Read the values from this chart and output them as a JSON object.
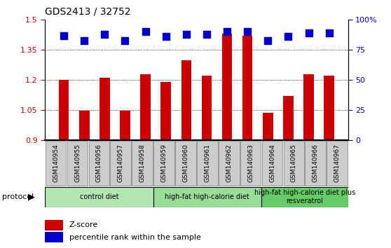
{
  "title": "GDS2413 / 32752",
  "samples": [
    "GSM140954",
    "GSM140955",
    "GSM140956",
    "GSM140957",
    "GSM140958",
    "GSM140959",
    "GSM140960",
    "GSM140961",
    "GSM140962",
    "GSM140963",
    "GSM140964",
    "GSM140965",
    "GSM140966",
    "GSM140967"
  ],
  "z_scores": [
    1.2,
    1.046,
    1.21,
    1.046,
    1.23,
    1.19,
    1.3,
    1.22,
    1.43,
    1.42,
    1.035,
    1.12,
    1.23,
    1.22
  ],
  "percentile_ranks": [
    87,
    83,
    88,
    83,
    90,
    86,
    88,
    88,
    90,
    90,
    83,
    86,
    89,
    89
  ],
  "ylim_left": [
    0.9,
    1.5
  ],
  "ylim_right": [
    0,
    100
  ],
  "yticks_left": [
    0.9,
    1.05,
    1.2,
    1.35,
    1.5
  ],
  "yticks_right": [
    0,
    25,
    50,
    75,
    100
  ],
  "bar_color": "#cc0000",
  "dot_color": "#0000cc",
  "groups": [
    {
      "label": "control diet",
      "start": 0,
      "end": 4,
      "color": "#b3e6b3"
    },
    {
      "label": "high-fat high-calorie diet",
      "start": 5,
      "end": 9,
      "color": "#99dd99"
    },
    {
      "label": "high-fat high-calorie diet plus\nresveratrol",
      "start": 10,
      "end": 13,
      "color": "#66cc66"
    }
  ],
  "protocol_label": "protocol",
  "legend_zscore": "Z-score",
  "legend_percentile": "percentile rank within the sample",
  "bar_width": 0.5,
  "dot_size": 50,
  "tick_bg_color": "#cccccc",
  "tick_border_color": "#888888"
}
